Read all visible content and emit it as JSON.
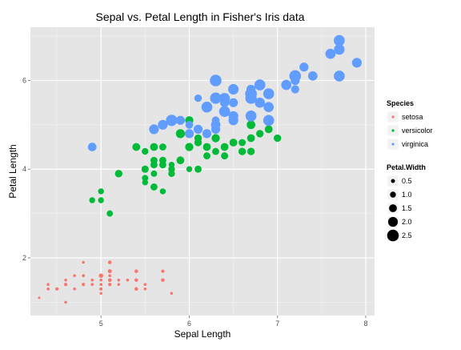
{
  "chart_data": {
    "type": "scatter",
    "title": "Sepal vs. Petal Length in Fisher's Iris data",
    "xlabel": "Sepal Length",
    "ylabel": "Petal Length",
    "xlim": [
      4.2,
      8.1
    ],
    "ylim": [
      0.7,
      7.2
    ],
    "x_ticks": [
      5,
      6,
      7,
      8
    ],
    "y_ticks": [
      2,
      4,
      6
    ],
    "x_minor": [
      4.5,
      5.5,
      6.5,
      7.5
    ],
    "y_minor": [
      1,
      3,
      5,
      7
    ],
    "grid": true,
    "panel_background": "#e5e5e5",
    "grid_color": "#ffffff",
    "legend_position": "right",
    "color_legend": {
      "title": "Species",
      "items": [
        {
          "label": "setosa",
          "color": "#F8766D"
        },
        {
          "label": "versicolor",
          "color": "#00BA38"
        },
        {
          "label": "virginica",
          "color": "#619CFF"
        }
      ]
    },
    "size_legend": {
      "title": "Petal.Width",
      "breaks": [
        0.5,
        1.0,
        1.5,
        2.0,
        2.5
      ],
      "labels": [
        "0.5",
        "1.0",
        "1.5",
        "2.0",
        "2.5"
      ]
    },
    "series": [
      {
        "name": "setosa",
        "color": "#F8766D",
        "points": [
          [
            5.1,
            1.4,
            0.2
          ],
          [
            4.9,
            1.4,
            0.2
          ],
          [
            4.7,
            1.3,
            0.2
          ],
          [
            4.6,
            1.5,
            0.2
          ],
          [
            5.0,
            1.4,
            0.2
          ],
          [
            5.4,
            1.7,
            0.4
          ],
          [
            4.6,
            1.4,
            0.3
          ],
          [
            5.0,
            1.5,
            0.2
          ],
          [
            4.4,
            1.4,
            0.2
          ],
          [
            4.9,
            1.5,
            0.1
          ],
          [
            5.4,
            1.5,
            0.2
          ],
          [
            4.8,
            1.6,
            0.2
          ],
          [
            4.8,
            1.4,
            0.1
          ],
          [
            4.3,
            1.1,
            0.1
          ],
          [
            5.8,
            1.2,
            0.2
          ],
          [
            5.7,
            1.5,
            0.4
          ],
          [
            5.4,
            1.3,
            0.4
          ],
          [
            5.1,
            1.4,
            0.3
          ],
          [
            5.7,
            1.7,
            0.3
          ],
          [
            5.1,
            1.5,
            0.3
          ],
          [
            5.4,
            1.7,
            0.2
          ],
          [
            5.1,
            1.5,
            0.4
          ],
          [
            4.6,
            1.0,
            0.2
          ],
          [
            5.1,
            1.7,
            0.5
          ],
          [
            4.8,
            1.9,
            0.2
          ],
          [
            5.0,
            1.6,
            0.2
          ],
          [
            5.0,
            1.6,
            0.4
          ],
          [
            5.2,
            1.5,
            0.2
          ],
          [
            5.2,
            1.4,
            0.2
          ],
          [
            4.7,
            1.6,
            0.2
          ],
          [
            4.8,
            1.6,
            0.2
          ],
          [
            5.4,
            1.5,
            0.4
          ],
          [
            5.2,
            1.5,
            0.1
          ],
          [
            5.5,
            1.4,
            0.2
          ],
          [
            4.9,
            1.5,
            0.2
          ],
          [
            5.0,
            1.2,
            0.2
          ],
          [
            5.5,
            1.3,
            0.2
          ],
          [
            4.9,
            1.4,
            0.1
          ],
          [
            4.4,
            1.3,
            0.2
          ],
          [
            5.1,
            1.5,
            0.2
          ],
          [
            5.0,
            1.3,
            0.3
          ],
          [
            4.5,
            1.3,
            0.3
          ],
          [
            4.4,
            1.3,
            0.2
          ],
          [
            5.0,
            1.6,
            0.6
          ],
          [
            5.1,
            1.9,
            0.4
          ],
          [
            4.8,
            1.4,
            0.3
          ],
          [
            5.1,
            1.6,
            0.2
          ],
          [
            4.6,
            1.4,
            0.2
          ],
          [
            5.3,
            1.5,
            0.2
          ],
          [
            5.0,
            1.4,
            0.2
          ]
        ]
      },
      {
        "name": "versicolor",
        "color": "#00BA38",
        "points": [
          [
            7.0,
            4.7,
            1.4
          ],
          [
            6.4,
            4.5,
            1.5
          ],
          [
            6.9,
            4.9,
            1.5
          ],
          [
            5.5,
            4.0,
            1.3
          ],
          [
            6.5,
            4.6,
            1.5
          ],
          [
            5.7,
            4.5,
            1.3
          ],
          [
            6.3,
            4.7,
            1.6
          ],
          [
            4.9,
            3.3,
            1.0
          ],
          [
            6.6,
            4.6,
            1.3
          ],
          [
            5.2,
            3.9,
            1.4
          ],
          [
            5.0,
            3.5,
            1.0
          ],
          [
            5.9,
            4.2,
            1.5
          ],
          [
            6.0,
            4.0,
            1.0
          ],
          [
            6.1,
            4.7,
            1.4
          ],
          [
            5.6,
            3.6,
            1.3
          ],
          [
            6.7,
            4.4,
            1.4
          ],
          [
            5.6,
            4.5,
            1.5
          ],
          [
            5.8,
            4.1,
            1.0
          ],
          [
            6.2,
            4.5,
            1.5
          ],
          [
            5.6,
            3.9,
            1.1
          ],
          [
            5.9,
            4.8,
            1.8
          ],
          [
            6.1,
            4.0,
            1.3
          ],
          [
            6.3,
            4.9,
            1.5
          ],
          [
            6.1,
            4.7,
            1.2
          ],
          [
            6.4,
            4.3,
            1.3
          ],
          [
            6.6,
            4.4,
            1.4
          ],
          [
            6.8,
            4.8,
            1.4
          ],
          [
            6.7,
            5.0,
            1.7
          ],
          [
            6.0,
            4.5,
            1.5
          ],
          [
            5.7,
            3.5,
            1.0
          ],
          [
            5.5,
            3.8,
            1.1
          ],
          [
            5.5,
            3.7,
            1.0
          ],
          [
            5.8,
            3.9,
            1.2
          ],
          [
            6.0,
            5.1,
            1.6
          ],
          [
            5.4,
            4.5,
            1.5
          ],
          [
            6.0,
            4.5,
            1.6
          ],
          [
            6.7,
            4.7,
            1.5
          ],
          [
            6.3,
            4.4,
            1.3
          ],
          [
            5.6,
            4.1,
            1.3
          ],
          [
            5.5,
            4.0,
            1.3
          ],
          [
            5.5,
            4.4,
            1.2
          ],
          [
            6.1,
            4.6,
            1.4
          ],
          [
            5.8,
            4.0,
            1.2
          ],
          [
            5.0,
            3.3,
            1.0
          ],
          [
            5.6,
            4.2,
            1.3
          ],
          [
            5.7,
            4.2,
            1.2
          ],
          [
            5.7,
            4.2,
            1.3
          ],
          [
            6.2,
            4.3,
            1.3
          ],
          [
            5.1,
            3.0,
            1.1
          ],
          [
            5.7,
            4.1,
            1.3
          ]
        ]
      },
      {
        "name": "virginica",
        "color": "#619CFF",
        "points": [
          [
            6.3,
            6.0,
            2.5
          ],
          [
            5.8,
            5.1,
            1.9
          ],
          [
            7.1,
            5.9,
            2.1
          ],
          [
            6.3,
            5.6,
            1.8
          ],
          [
            6.5,
            5.8,
            2.2
          ],
          [
            7.6,
            6.6,
            2.1
          ],
          [
            4.9,
            4.5,
            1.7
          ],
          [
            7.3,
            6.3,
            1.8
          ],
          [
            6.7,
            5.8,
            1.8
          ],
          [
            7.2,
            6.1,
            2.5
          ],
          [
            6.5,
            5.1,
            2.0
          ],
          [
            6.4,
            5.3,
            1.9
          ],
          [
            6.8,
            5.5,
            2.1
          ],
          [
            5.7,
            5.0,
            2.0
          ],
          [
            5.8,
            5.1,
            2.4
          ],
          [
            6.4,
            5.3,
            2.3
          ],
          [
            6.5,
            5.5,
            1.8
          ],
          [
            7.7,
            6.7,
            2.2
          ],
          [
            7.7,
            6.9,
            2.3
          ],
          [
            6.0,
            5.0,
            1.5
          ],
          [
            6.9,
            5.7,
            2.3
          ],
          [
            5.6,
            4.9,
            2.0
          ],
          [
            7.7,
            6.7,
            2.0
          ],
          [
            6.3,
            4.9,
            1.8
          ],
          [
            6.7,
            5.7,
            2.1
          ],
          [
            7.2,
            6.0,
            1.8
          ],
          [
            6.2,
            4.8,
            1.8
          ],
          [
            6.1,
            4.9,
            1.8
          ],
          [
            6.4,
            5.6,
            2.1
          ],
          [
            7.2,
            5.8,
            1.6
          ],
          [
            7.4,
            6.1,
            1.9
          ],
          [
            7.9,
            6.4,
            2.0
          ],
          [
            6.4,
            5.6,
            2.2
          ],
          [
            6.3,
            5.1,
            1.5
          ],
          [
            6.1,
            5.6,
            1.4
          ],
          [
            7.7,
            6.1,
            2.3
          ],
          [
            6.3,
            5.6,
            2.4
          ],
          [
            6.4,
            5.5,
            1.8
          ],
          [
            6.0,
            4.8,
            1.8
          ],
          [
            6.9,
            5.4,
            2.1
          ],
          [
            6.7,
            5.6,
            2.4
          ],
          [
            6.9,
            5.1,
            2.3
          ],
          [
            5.8,
            5.1,
            1.9
          ],
          [
            6.8,
            5.9,
            2.3
          ],
          [
            6.7,
            5.7,
            2.5
          ],
          [
            6.7,
            5.2,
            2.3
          ],
          [
            6.3,
            5.0,
            1.9
          ],
          [
            6.5,
            5.2,
            2.0
          ],
          [
            6.2,
            5.4,
            2.3
          ],
          [
            5.9,
            5.1,
            1.8
          ]
        ]
      }
    ]
  }
}
